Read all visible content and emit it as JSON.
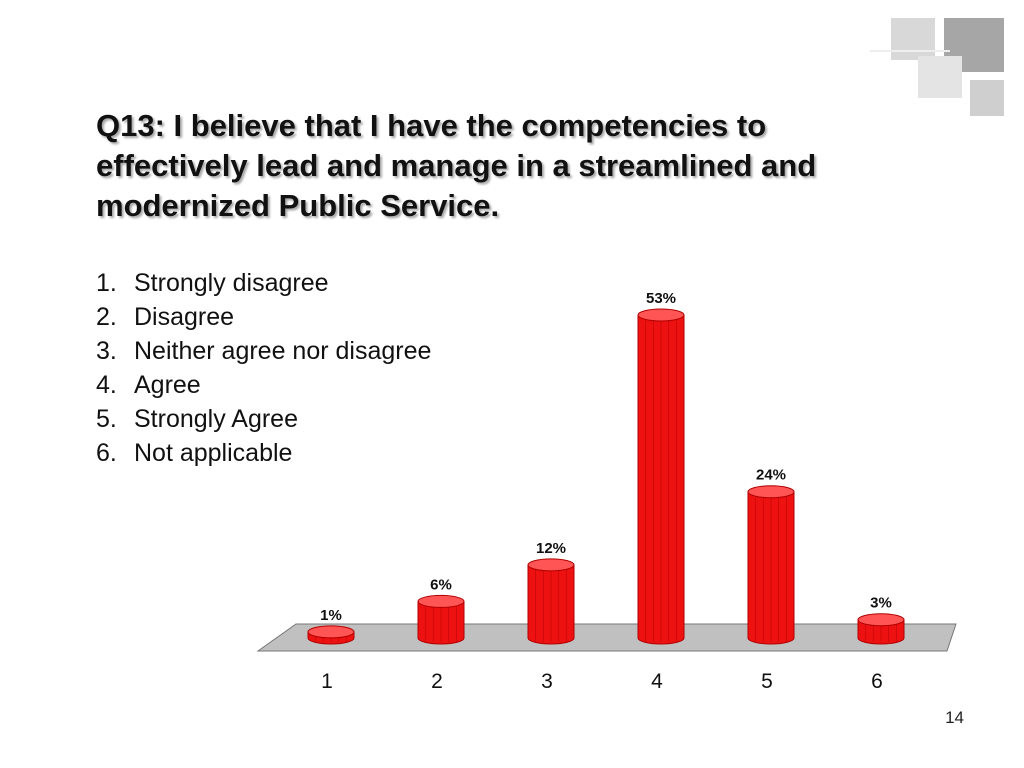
{
  "slide": {
    "title": "Q13: I believe that I have the competencies to effectively lead and manage in a streamlined and modernized Public Service.",
    "page_number": "14",
    "options": [
      {
        "num": "1.",
        "label": "Strongly disagree"
      },
      {
        "num": "2.",
        "label": "Disagree"
      },
      {
        "num": "3.",
        "label": "Neither agree nor disagree"
      },
      {
        "num": "4.",
        "label": "Agree"
      },
      {
        "num": "5.",
        "label": "Strongly Agree"
      },
      {
        "num": "6.",
        "label": "Not applicable"
      }
    ]
  },
  "colors": {
    "bar": "#ee1111",
    "bar_dark": "#b00000",
    "bar_top": "#ff5555",
    "floor": "#c0c0c0",
    "deco_dark": "#a6a6a6",
    "deco_light": "#dedede"
  },
  "chart_data": {
    "type": "bar",
    "style": "3d-cylinder",
    "categories": [
      "1",
      "2",
      "3",
      "4",
      "5",
      "6"
    ],
    "values": [
      1,
      6,
      12,
      53,
      24,
      3
    ],
    "data_labels": [
      "1%",
      "6%",
      "12%",
      "53%",
      "24%",
      "3%"
    ],
    "ylim": [
      0,
      53
    ],
    "grid": false,
    "legend": "none",
    "title": "",
    "xlabel": "",
    "ylabel": ""
  }
}
